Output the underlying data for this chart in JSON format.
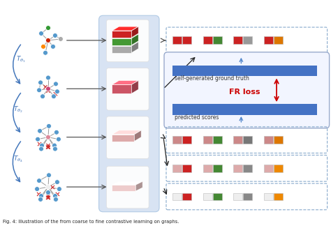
{
  "bg_color": "#ffffff",
  "center_panel_color": "#c8d8ee",
  "blue_bar_color": "#4472c4",
  "fr_loss_color": "#cc0000",
  "fr_loss_text": "FR loss",
  "self_gen_text": "self-generated ground truth",
  "pred_scores_text": "predicted scores",
  "caption": "Fig. 4: Illustration of the from coarse to fine contrastive learning on graphs.",
  "pairs_row0": [
    [
      "#cc2222",
      "#cc2222"
    ],
    [
      "#cc2222",
      "#448833"
    ],
    [
      "#cc2222",
      "#999999"
    ],
    [
      "#cc2222",
      "#dd7700"
    ]
  ],
  "pairs_row1": [
    [
      "#cc8888",
      "#cc2222"
    ],
    [
      "#cc8888",
      "#448833"
    ],
    [
      "#cc8888",
      "#777777"
    ],
    [
      "#cc8888",
      "#dd7700"
    ]
  ],
  "pairs_row2": [
    [
      "#ddaaaa",
      "#cc2222"
    ],
    [
      "#ddaaaa",
      "#448833"
    ],
    [
      "#ddaaaa",
      "#888888"
    ],
    [
      "#ddaaaa",
      "#ee8800"
    ]
  ],
  "pairs_row3": [
    [
      "#eeeeee",
      "#cc2222"
    ],
    [
      "#eeeeee",
      "#448833"
    ],
    [
      "#eeeeee",
      "#888888"
    ],
    [
      "#eeeeee",
      "#ee8800"
    ]
  ]
}
